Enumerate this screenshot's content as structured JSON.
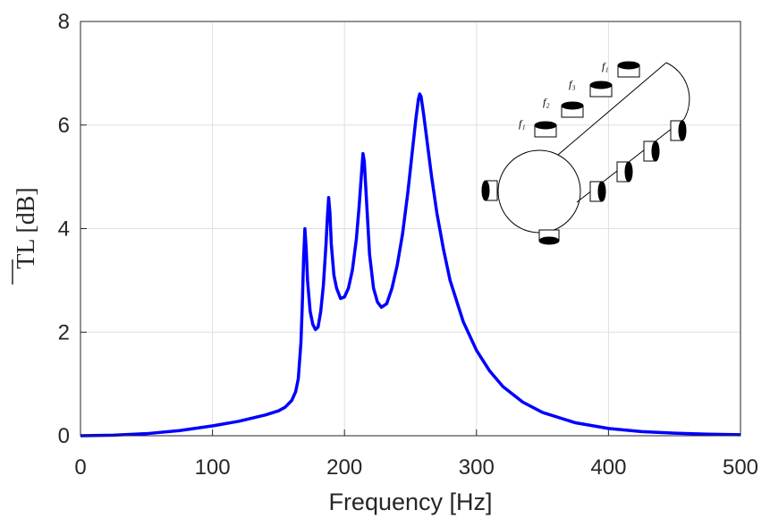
{
  "chart_data": {
    "type": "line",
    "xlabel": "Frequency [Hz]",
    "ylabel": "TL [dB]",
    "xlim": [
      0,
      500
    ],
    "xticks": [
      0,
      100,
      200,
      300,
      400,
      500
    ],
    "ylim": [
      0,
      8
    ],
    "yticks": [
      0,
      2,
      4,
      6,
      8
    ],
    "grid": true,
    "x": [
      0,
      25,
      50,
      75,
      100,
      120,
      140,
      150,
      155,
      160,
      163,
      165,
      167,
      168,
      169,
      170,
      171,
      172,
      174,
      176,
      178,
      180,
      182,
      184,
      186,
      187,
      188,
      189,
      190,
      192,
      194,
      197,
      200,
      203,
      206,
      209,
      211,
      213,
      214,
      215,
      217,
      219,
      222,
      225,
      228,
      232,
      236,
      240,
      244,
      248,
      251,
      254,
      256,
      257,
      258,
      260,
      263,
      266,
      270,
      275,
      280,
      290,
      300,
      310,
      320,
      335,
      350,
      375,
      400,
      425,
      450,
      475,
      500
    ],
    "series": [
      {
        "color": "#0000ff",
        "values": [
          0,
          0.01,
          0.04,
          0.1,
          0.19,
          0.28,
          0.4,
          0.48,
          0.55,
          0.68,
          0.85,
          1.1,
          1.8,
          2.5,
          3.4,
          4.0,
          3.6,
          3.0,
          2.4,
          2.15,
          2.05,
          2.1,
          2.4,
          2.9,
          3.7,
          4.2,
          4.6,
          4.3,
          3.7,
          3.1,
          2.85,
          2.65,
          2.68,
          2.85,
          3.2,
          3.8,
          4.4,
          5.1,
          5.45,
          5.3,
          4.4,
          3.5,
          2.85,
          2.58,
          2.48,
          2.55,
          2.85,
          3.3,
          3.9,
          4.7,
          5.4,
          6.1,
          6.5,
          6.6,
          6.55,
          6.2,
          5.6,
          5.0,
          4.3,
          3.6,
          3.0,
          2.2,
          1.65,
          1.25,
          0.95,
          0.65,
          0.45,
          0.25,
          0.14,
          0.08,
          0.05,
          0.03,
          0.02
        ]
      }
    ],
    "inset_labels": [
      "f₁",
      "f₂",
      "f₃",
      "f₁"
    ]
  }
}
